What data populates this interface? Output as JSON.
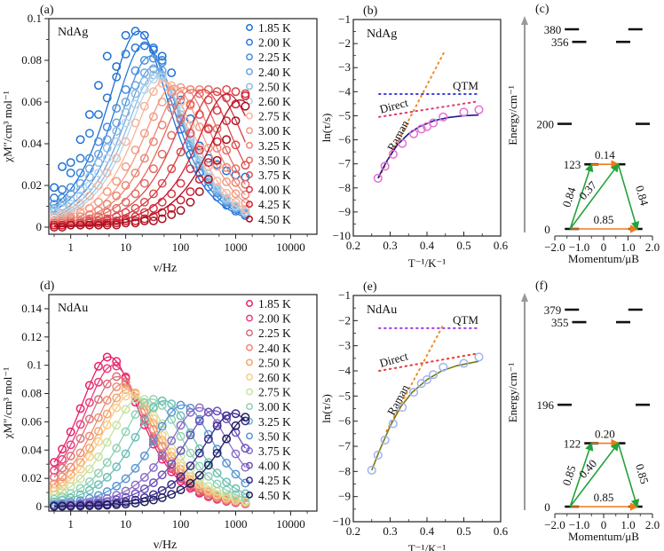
{
  "chart_data": [
    {
      "id": "a",
      "panel_label": "(a)",
      "type": "scatter",
      "sample": "NdAg",
      "title": "",
      "xlabel": "ν/Hz",
      "ylabel": "χM″/cm³ mol⁻¹",
      "xscale": "log",
      "xlim": [
        0.4,
        30000
      ],
      "ylim": [
        0,
        0.1
      ],
      "xticks": [
        "1",
        "10",
        "100",
        "1000",
        "10000"
      ],
      "yticks": [
        "0",
        "0.02",
        "0.04",
        "0.06",
        "0.08",
        "0.1"
      ],
      "legend_position": "right",
      "fit_lines": true,
      "x": [
        0.5,
        0.7,
        1,
        1.5,
        2.2,
        3.2,
        4.6,
        6.8,
        10,
        15,
        22,
        32,
        46,
        68,
        100,
        150,
        220,
        320,
        460,
        680,
        1000,
        1500
      ],
      "series": [
        {
          "name": "1.85 K",
          "color": "#1f6fd6",
          "peak_x": 17,
          "peak_y": 0.094,
          "values": [
            0.019,
            0.029,
            0.031,
            0.042,
            0.054,
            0.068,
            0.082,
            0.077,
            0.092,
            0.094,
            0.092,
            0.085,
            0.082,
            0.074,
            0.061,
            0.052,
            0.039,
            0.033,
            0.03,
            0.027,
            0.025,
            0.024
          ]
        },
        {
          "name": "2.00 K",
          "color": "#2a7ad9",
          "peak_x": 22,
          "peak_y": 0.088,
          "values": [
            0.014,
            0.018,
            0.026,
            0.033,
            0.045,
            0.054,
            0.062,
            0.072,
            0.083,
            0.086,
            0.087,
            0.086,
            0.08
          ]
        },
        {
          "name": "2.25 K",
          "color": "#4a8fdd",
          "peak_x": 28,
          "peak_y": 0.082,
          "values": [
            0.011,
            0.014,
            0.019,
            0.026,
            0.033,
            0.041,
            0.048,
            0.057,
            0.066,
            0.075,
            0.08,
            0.081,
            0.079
          ]
        },
        {
          "name": "2.40 K",
          "color": "#6ca6df",
          "peak_x": 32,
          "peak_y": 0.077,
          "values": [
            0.009,
            0.012,
            0.016,
            0.021,
            0.028,
            0.035,
            0.042,
            0.05,
            0.06,
            0.068,
            0.074,
            0.076,
            0.075
          ]
        },
        {
          "name": "2.50 K",
          "color": "#8dbde3",
          "peak_x": 36,
          "peak_y": 0.074,
          "values": [
            0.008,
            0.01,
            0.013,
            0.018,
            0.024,
            0.031,
            0.038,
            0.046,
            0.055,
            0.064,
            0.07,
            0.073,
            0.073
          ]
        },
        {
          "name": "2.60 K",
          "color": "#b4d3ea",
          "peak_x": 40,
          "peak_y": 0.072,
          "values": [
            0.007,
            0.009,
            0.011,
            0.015,
            0.02,
            0.026,
            0.033,
            0.041,
            0.05,
            0.059,
            0.066,
            0.071,
            0.072
          ]
        },
        {
          "name": "2.75 K",
          "color": "#f7b59a",
          "peak_x": 50,
          "peak_y": 0.07,
          "values": [
            0.005,
            0.006,
            0.008,
            0.011,
            0.015,
            0.02,
            0.026,
            0.033,
            0.041,
            0.05,
            0.058,
            0.065,
            0.069
          ]
        },
        {
          "name": "3.00 K",
          "color": "#f29c84",
          "peak_x": 75,
          "peak_y": 0.068,
          "values": [
            0.003,
            0.004,
            0.005,
            0.007,
            0.009,
            0.012,
            0.017,
            0.022,
            0.029,
            0.037,
            0.045,
            0.053,
            0.06,
            0.065,
            0.067
          ]
        },
        {
          "name": "3.25 K",
          "color": "#ec8574",
          "peak_x": 110,
          "peak_y": 0.067,
          "values": [
            0.002,
            0.003,
            0.004,
            0.005,
            0.006,
            0.008,
            0.011,
            0.015,
            0.02,
            0.026,
            0.033,
            0.041,
            0.049,
            0.057,
            0.063,
            0.066,
            0.066
          ]
        },
        {
          "name": "3.50 K",
          "color": "#e56c63",
          "peak_x": 160,
          "peak_y": 0.066,
          "values": [
            0.002,
            0.002,
            0.003,
            0.003,
            0.004,
            0.005,
            0.007,
            0.009,
            0.012,
            0.016,
            0.021,
            0.028,
            0.035,
            0.044,
            0.052,
            0.059,
            0.064,
            0.066
          ]
        },
        {
          "name": "3.75 K",
          "color": "#dd4e50",
          "peak_x": 260,
          "peak_y": 0.066,
          "values": [
            0.001,
            0.001,
            0.002,
            0.002,
            0.003,
            0.003,
            0.004,
            0.005,
            0.007,
            0.009,
            0.012,
            0.016,
            0.021,
            0.028,
            0.036,
            0.045,
            0.054,
            0.061,
            0.065,
            0.066
          ]
        },
        {
          "name": "4.00 K",
          "color": "#d63a44",
          "peak_x": 420,
          "peak_y": 0.065,
          "values": [
            0.001,
            0.001,
            0.001,
            0.001,
            0.002,
            0.002,
            0.003,
            0.003,
            0.004,
            0.005,
            0.007,
            0.009,
            0.012,
            0.016,
            0.021,
            0.028,
            0.037,
            0.047,
            0.056,
            0.062,
            0.065,
            0.064
          ]
        },
        {
          "name": "4.25 K",
          "color": "#cf1f36",
          "peak_x": 700,
          "peak_y": 0.064,
          "values": [
            0.001,
            0.001,
            0.001,
            0.001,
            0.001,
            0.001,
            0.002,
            0.002,
            0.003,
            0.003,
            0.004,
            0.005,
            0.007,
            0.009,
            0.013,
            0.017,
            0.023,
            0.031,
            0.041,
            0.051,
            0.059,
            0.063
          ]
        },
        {
          "name": "4.50 K",
          "color": "#a8101f",
          "peak_x": 1200,
          "peak_y": 0.061,
          "values": [
            0.0,
            0.0,
            0.001,
            0.001,
            0.001,
            0.001,
            0.001,
            0.001,
            0.002,
            0.002,
            0.003,
            0.003,
            0.004,
            0.006,
            0.008,
            0.012,
            0.017,
            0.023,
            0.032,
            0.042,
            0.051,
            0.058
          ]
        }
      ]
    },
    {
      "id": "b",
      "panel_label": "(b)",
      "type": "scatter",
      "sample": "NdAg",
      "xlabel": "T⁻¹/K⁻¹",
      "ylabel": "ln(τ/s)",
      "xlim": [
        0.2,
        0.6
      ],
      "ylim": [
        -10,
        -1
      ],
      "xticks": [
        "0.2",
        "0.3",
        "0.4",
        "0.5",
        "0.6"
      ],
      "yticks": [
        "−10",
        "−9",
        "−8",
        "−7",
        "−6",
        "−5",
        "−4",
        "−3",
        "−2",
        "−1"
      ],
      "points_color": "#e36fd3",
      "fit_color": "#1a1a8c",
      "x": [
        0.267,
        0.286,
        0.308,
        0.333,
        0.364,
        0.385,
        0.4,
        0.417,
        0.444,
        0.5,
        0.541
      ],
      "y": [
        -7.6,
        -7.1,
        -6.6,
        -6.15,
        -5.75,
        -5.55,
        -5.45,
        -5.3,
        -5.05,
        -4.85,
        -4.75
      ],
      "fit": [
        [
          0.267,
          -7.6
        ],
        [
          0.29,
          -6.9
        ],
        [
          0.32,
          -6.2
        ],
        [
          0.35,
          -5.75
        ],
        [
          0.38,
          -5.45
        ],
        [
          0.42,
          -5.2
        ],
        [
          0.46,
          -5.07
        ],
        [
          0.5,
          -5.0
        ],
        [
          0.54,
          -4.97
        ]
      ],
      "components": [
        {
          "name": "QTM",
          "color": "#3b3bdc",
          "points": [
            [
              0.27,
              -4.1
            ],
            [
              0.54,
              -4.1
            ]
          ]
        },
        {
          "name": "Direct",
          "color": "#e23a63",
          "points": [
            [
              0.27,
              -5.05
            ],
            [
              0.54,
              -4.4
            ]
          ]
        },
        {
          "name": "Raman",
          "color": "#f08a24",
          "points": [
            [
              0.27,
              -7.55
            ],
            [
              0.445,
              -2.4
            ]
          ]
        }
      ]
    },
    {
      "id": "c",
      "panel_label": "(c)",
      "type": "diagram",
      "xlabel": "Momentum/μB",
      "ylabel": "Energy/cm⁻¹",
      "xlim": [
        -2.0,
        2.0
      ],
      "xticks": [
        "−2.0",
        "−1.0",
        "0",
        "1.0",
        "2.0"
      ],
      "levels": [
        {
          "energy": 0,
          "label": "0",
          "left_m": -1.3,
          "right_m": 1.3
        },
        {
          "energy": 123,
          "label": "123",
          "left_m": -0.5,
          "right_m": 0.6
        },
        {
          "energy": 200,
          "label": "200",
          "left_m": -1.6,
          "right_m": 1.6
        },
        {
          "energy": 356,
          "label": "356",
          "left_m": -1.0,
          "right_m": 0.8
        },
        {
          "energy": 380,
          "label": "380",
          "left_m": -1.3,
          "right_m": 1.3
        }
      ],
      "transitions": [
        {
          "label": "0.85",
          "type": "orange",
          "from": "0L",
          "to": "0R"
        },
        {
          "label": "0.14",
          "type": "orange",
          "from": "1L",
          "to": "1R"
        },
        {
          "label": "0.84",
          "type": "green",
          "from": "0L",
          "to": "1L"
        },
        {
          "label": "0.37",
          "type": "green",
          "from": "0L",
          "to": "1R"
        },
        {
          "label": "0.84",
          "type": "green",
          "from": "1R",
          "to": "0R"
        }
      ]
    },
    {
      "id": "d",
      "panel_label": "(d)",
      "type": "scatter",
      "sample": "NdAu",
      "xlabel": "ν/Hz",
      "ylabel": "χM″/cm³ mol⁻¹",
      "xscale": "log",
      "xlim": [
        0.4,
        30000
      ],
      "ylim": [
        0,
        0.15
      ],
      "xticks": [
        "1",
        "10",
        "100",
        "1000",
        "10000"
      ],
      "yticks": [
        "0",
        "0.02",
        "0.04",
        "0.06",
        "0.08",
        "0.1",
        "0.12",
        "0.14"
      ],
      "legend_position": "right",
      "fit_lines": true,
      "series": [
        {
          "name": "1.85 K",
          "color": "#e8206a",
          "peak_x": 5,
          "peak_y": 0.106
        },
        {
          "name": "2.00 K",
          "color": "#ea3c7a",
          "peak_x": 6,
          "peak_y": 0.1
        },
        {
          "name": "2.25 K",
          "color": "#d9707a",
          "peak_x": 7,
          "peak_y": 0.092
        },
        {
          "name": "2.40 K",
          "color": "#ef8c72",
          "peak_x": 9,
          "peak_y": 0.087
        },
        {
          "name": "2.50 K",
          "color": "#f4a56c",
          "peak_x": 11,
          "peak_y": 0.083
        },
        {
          "name": "2.60 K",
          "color": "#f8cc86",
          "peak_x": 13,
          "peak_y": 0.08
        },
        {
          "name": "2.75 K",
          "color": "#c6e3a0",
          "peak_x": 18,
          "peak_y": 0.077
        },
        {
          "name": "3.00 K",
          "color": "#8fd1b4",
          "peak_x": 30,
          "peak_y": 0.076
        },
        {
          "name": "3.25 K",
          "color": "#6cc0b6",
          "peak_x": 50,
          "peak_y": 0.075
        },
        {
          "name": "3.50 K",
          "color": "#5a96d2",
          "peak_x": 110,
          "peak_y": 0.072
        },
        {
          "name": "3.75 K",
          "color": "#8a6fc9",
          "peak_x": 220,
          "peak_y": 0.07
        },
        {
          "name": "4.00 K",
          "color": "#6c52b8",
          "peak_x": 400,
          "peak_y": 0.068
        },
        {
          "name": "4.25 K",
          "color": "#3a2d8c",
          "peak_x": 900,
          "peak_y": 0.066
        },
        {
          "name": "4.50 K",
          "color": "#221f5e",
          "peak_x": 1800,
          "peak_y": 0.064
        }
      ]
    },
    {
      "id": "e",
      "panel_label": "(e)",
      "type": "scatter",
      "sample": "NdAu",
      "xlabel": "T⁻¹/K⁻¹",
      "ylabel": "ln(τ/s)",
      "xlim": [
        0.2,
        0.6
      ],
      "ylim": [
        -10,
        -1
      ],
      "xticks": [
        "0.2",
        "0.3",
        "0.4",
        "0.5",
        "0.6"
      ],
      "yticks": [
        "−10",
        "−9",
        "−8",
        "−7",
        "−6",
        "−5",
        "−4",
        "−3",
        "−2",
        "−1"
      ],
      "points_color": "#9fb4ef",
      "fit_color": "#7a7a10",
      "x": [
        0.25,
        0.267,
        0.286,
        0.308,
        0.333,
        0.364,
        0.385,
        0.4,
        0.417,
        0.444,
        0.5,
        0.541
      ],
      "y": [
        -7.95,
        -7.35,
        -6.75,
        -6.1,
        -5.45,
        -4.85,
        -4.5,
        -4.35,
        -4.15,
        -3.85,
        -3.7,
        -3.45
      ],
      "fit": [
        [
          0.25,
          -7.95
        ],
        [
          0.27,
          -7.2
        ],
        [
          0.3,
          -6.2
        ],
        [
          0.33,
          -5.4
        ],
        [
          0.36,
          -4.85
        ],
        [
          0.4,
          -4.35
        ],
        [
          0.44,
          -4.0
        ],
        [
          0.48,
          -3.8
        ],
        [
          0.54,
          -3.62
        ]
      ],
      "components": [
        {
          "name": "QTM",
          "color": "#9a3ee8",
          "points": [
            [
              0.27,
              -2.3
            ],
            [
              0.54,
              -2.3
            ]
          ]
        },
        {
          "name": "Direct",
          "color": "#e23a3a",
          "points": [
            [
              0.27,
              -4.0
            ],
            [
              0.54,
              -3.3
            ]
          ]
        },
        {
          "name": "Raman",
          "color": "#f08a24",
          "points": [
            [
              0.29,
              -6.4
            ],
            [
              0.445,
              -2.15
            ]
          ]
        }
      ]
    },
    {
      "id": "f",
      "panel_label": "(f)",
      "type": "diagram",
      "xlabel": "Momentum/μB",
      "ylabel": "Energy/cm⁻¹",
      "xlim": [
        -2.0,
        2.0
      ],
      "xticks": [
        "−2.0",
        "−1.0",
        "0",
        "1.0",
        "2.0"
      ],
      "levels": [
        {
          "energy": 0,
          "label": "0",
          "left_m": -1.3,
          "right_m": 1.3
        },
        {
          "energy": 122,
          "label": "122",
          "left_m": -0.5,
          "right_m": 0.6
        },
        {
          "energy": 196,
          "label": "196",
          "left_m": -1.6,
          "right_m": 1.6
        },
        {
          "energy": 355,
          "label": "355",
          "left_m": -1.0,
          "right_m": 0.8
        },
        {
          "energy": 379,
          "label": "379",
          "left_m": -1.3,
          "right_m": 1.3
        }
      ],
      "transitions": [
        {
          "label": "0.85",
          "type": "orange",
          "from": "0L",
          "to": "0R"
        },
        {
          "label": "0.20",
          "type": "orange",
          "from": "1L",
          "to": "1R"
        },
        {
          "label": "0.85",
          "type": "green",
          "from": "0L",
          "to": "1L"
        },
        {
          "label": "0.40",
          "type": "green",
          "from": "0L",
          "to": "1R"
        },
        {
          "label": "0.85",
          "type": "green",
          "from": "1R",
          "to": "0R"
        }
      ]
    }
  ]
}
